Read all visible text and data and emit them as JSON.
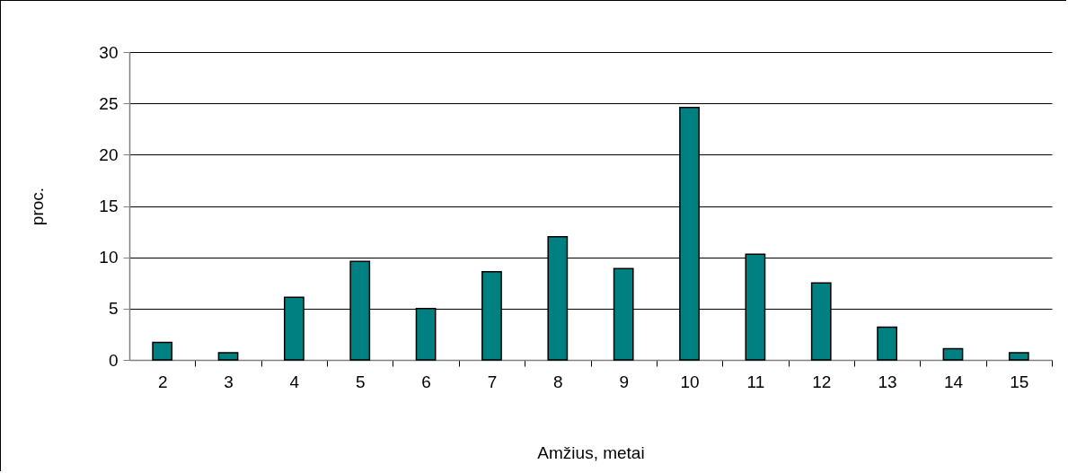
{
  "chart_data": {
    "type": "bar",
    "categories": [
      "2",
      "3",
      "4",
      "5",
      "6",
      "7",
      "8",
      "9",
      "10",
      "11",
      "12",
      "13",
      "14",
      "15"
    ],
    "values": [
      1.7,
      0.7,
      6.1,
      9.6,
      5.0,
      8.6,
      12.0,
      8.9,
      24.6,
      10.3,
      7.5,
      3.2,
      1.1,
      0.7
    ],
    "color": "#008080",
    "xlabel": "Amžius, metai",
    "ylabel": "proc.",
    "ylim": [
      0,
      30
    ],
    "yticks": [
      0,
      5,
      10,
      15,
      20,
      25,
      30
    ],
    "grid": "y"
  }
}
